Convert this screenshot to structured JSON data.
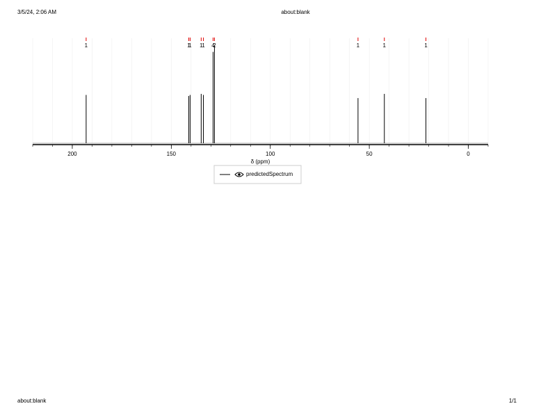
{
  "header": {
    "datetime": "3/5/24, 2:06 AM",
    "title": "about:blank"
  },
  "footer": {
    "url": "about:blank",
    "page": "1/1"
  },
  "chart_data": {
    "type": "stick",
    "xlabel": "δ (ppm)",
    "xlim": [
      220,
      -10
    ],
    "ylim": [
      0,
      1
    ],
    "xticks": [
      200,
      150,
      100,
      50,
      0
    ],
    "xminorticks": [
      220,
      210,
      200,
      190,
      180,
      170,
      160,
      150,
      140,
      130,
      120,
      110,
      100,
      90,
      80,
      70,
      60,
      50,
      40,
      30,
      20,
      10,
      0,
      -10
    ],
    "grid": true,
    "x": [
      193.0,
      141.2,
      140.5,
      134.9,
      133.8,
      128.9,
      128.2,
      55.7,
      42.4,
      21.4
    ],
    "series": [
      {
        "name": "predictedSpectrum",
        "color": "#000000",
        "values": [
          0.46,
          0.45,
          0.46,
          0.47,
          0.46,
          0.87,
          0.93,
          0.43,
          0.47,
          0.43
        ]
      }
    ],
    "peak_counts": [
      1,
      1,
      1,
      1,
      1,
      4,
      2,
      1,
      1,
      1
    ],
    "peak_color": "#e00000"
  }
}
